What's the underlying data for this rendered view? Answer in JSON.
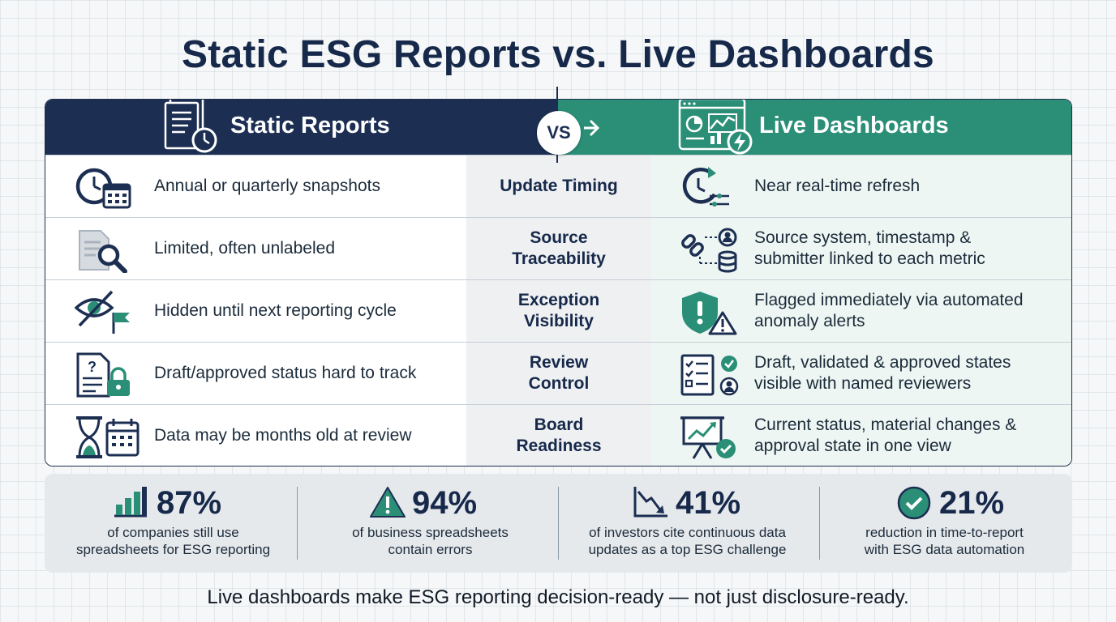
{
  "title": "Static ESG Reports vs. Live Dashboards",
  "header": {
    "left_title": "Static Reports",
    "right_title": "Live Dashboards",
    "vs_label": "VS",
    "left_icon": "document-clock-icon",
    "right_icon": "dashboard-lightning-icon"
  },
  "rows": [
    {
      "static_text": "Annual or quarterly snapshots",
      "criterion": "Update Timing",
      "live_text": "Near real-time refresh",
      "static_icon": "clock-calendar-icon",
      "live_icon": "refresh-clock-icon"
    },
    {
      "static_text": "Limited, often unlabeled",
      "criterion": "Source\nTraceability",
      "live_text": "Source system, timestamp &\nsubmitter linked to each metric",
      "static_icon": "document-search-icon",
      "live_icon": "link-user-database-icon"
    },
    {
      "static_text": "Hidden until next reporting cycle",
      "criterion": "Exception\nVisibility",
      "live_text": "Flagged immediately via automated\nanomaly alerts",
      "static_icon": "hidden-eye-flag-icon",
      "live_icon": "shield-alert-icon"
    },
    {
      "static_text": "Draft/approved status hard to track",
      "criterion": "Review\nControl",
      "live_text": "Draft, validated & approved states\nvisible with named reviewers",
      "static_icon": "document-lock-icon",
      "live_icon": "checklist-reviewer-icon"
    },
    {
      "static_text": "Data may be months old at review",
      "criterion": "Board\nReadiness",
      "live_text": "Current status, material changes &\napproval state in one view",
      "static_icon": "hourglass-calendar-icon",
      "live_icon": "presentation-check-icon"
    }
  ],
  "stats": [
    {
      "value": "87%",
      "caption": "of companies still use\nspreadsheets for ESG reporting",
      "icon": "bar-chart-icon"
    },
    {
      "value": "94%",
      "caption": "of business spreadsheets\ncontain errors",
      "icon": "warning-triangle-icon"
    },
    {
      "value": "41%",
      "caption": "of investors cite continuous data\nupdates as a top ESG challenge",
      "icon": "trend-down-chart-icon"
    },
    {
      "value": "21%",
      "caption": "reduction in time-to-report\nwith ESG data automation",
      "icon": "check-circle-icon"
    }
  ],
  "footer": "Live dashboards make ESG reporting decision-ready — not just disclosure-ready.",
  "colors": {
    "navy": "#1c2f52",
    "green": "#2a8f76",
    "mid_column": "#eef0f2",
    "right_column": "#eef6f3"
  }
}
